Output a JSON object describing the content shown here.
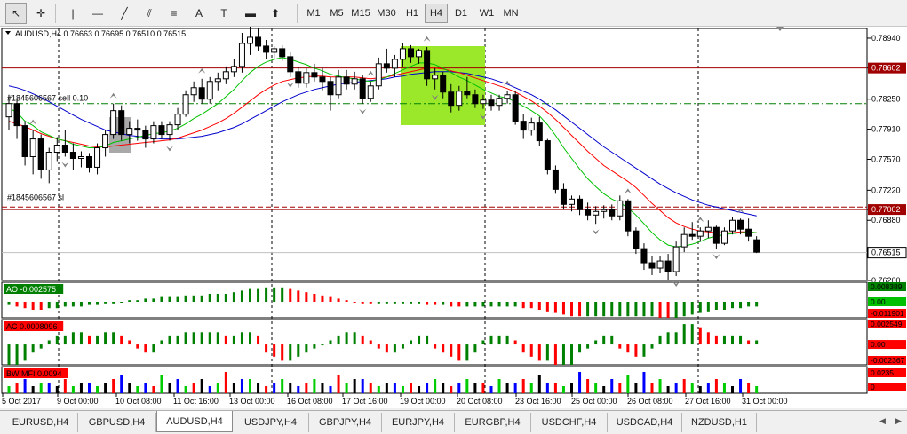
{
  "toolbar": {
    "tools": [
      {
        "name": "cursor-tool",
        "glyph": "↖"
      },
      {
        "name": "crosshair-tool",
        "glyph": "✛"
      },
      {
        "name": "vertical-line-tool",
        "glyph": "|"
      },
      {
        "name": "horizontal-line-tool",
        "glyph": "—"
      },
      {
        "name": "trendline-tool",
        "glyph": "╱"
      },
      {
        "name": "equidistant-channel-tool",
        "glyph": "⫽"
      },
      {
        "name": "fibonacci-tool",
        "glyph": "≡"
      },
      {
        "name": "text-tool",
        "glyph": "A"
      },
      {
        "name": "text-label-tool",
        "glyph": "T"
      },
      {
        "name": "rectangle-tool",
        "glyph": "▬"
      },
      {
        "name": "shapes-menu-tool",
        "glyph": "⬆"
      }
    ],
    "timeframes": [
      "M1",
      "M5",
      "M15",
      "M30",
      "H1",
      "H4",
      "D1",
      "W1",
      "MN"
    ],
    "active_timeframe": "H4"
  },
  "chart": {
    "symbol_info": "AUDUSD,H4  0.76663 0.76695 0.76510 0.76515",
    "trade_labels": [
      "#1845606567 sell 0.10",
      "#1845606567 sl"
    ],
    "price_levels": [
      "0.78940",
      "0.78602",
      "0.78250",
      "0.77910",
      "0.77570",
      "0.77220",
      "0.77002",
      "0.76880",
      "0.76515",
      "0.76200"
    ],
    "highlighted_levels": {
      "line_high": "0.78602",
      "line_sl": "0.77002",
      "current": "0.76515"
    },
    "time_labels": [
      "5 Oct 2017",
      "9 Oct 00:00",
      "10 Oct 08:00",
      "11 Oct 16:00",
      "13 Oct 00:00",
      "16 Oct 08:00",
      "17 Oct 16:00",
      "19 Oct 00:00",
      "20 Oct 08:00",
      "23 Oct 16:00",
      "25 Oct 00:00",
      "26 Oct 08:00",
      "27 Oct 16:00",
      "31 Oct 00:00"
    ],
    "colors": {
      "bull": "#000000",
      "bear": "#000000",
      "ma_fast": "#00c000",
      "ma_mid": "#ff0000",
      "ma_slow": "#0000cc",
      "level_line": "#a00000",
      "trade_line": "#008000",
      "highlight_rect": "#9be82a"
    }
  },
  "indicators": {
    "ao": {
      "label": "AO -0.002575",
      "scale": [
        "0.008389",
        "0.00",
        "-0.011901"
      ]
    },
    "ac": {
      "label": "AC 0.0008096",
      "scale": [
        "0.002549",
        "0.00",
        "-0.002367"
      ]
    },
    "bwmfi": {
      "label": "BW MFI 0.0094",
      "scale": [
        "0.0235",
        "0"
      ]
    }
  },
  "symbol_tabs": [
    "EURUSD,H4",
    "GBPUSD,H4",
    "AUDUSD,H4",
    "USDJPY,H4",
    "GBPJPY,H4",
    "EURJPY,H4",
    "EURGBP,H4",
    "USDCHF,H4",
    "USDCAD,H4",
    "NZDUSD,H1"
  ],
  "active_tab": "AUDUSD,H4",
  "chart_data": {
    "type": "candlestick",
    "title": "AUDUSD,H4",
    "ylim": [
      0.762,
      0.7905
    ],
    "ohlc": [
      [
        0.7805,
        0.783,
        0.779,
        0.782
      ],
      [
        0.782,
        0.7826,
        0.778,
        0.7795
      ],
      [
        0.7795,
        0.78,
        0.775,
        0.776
      ],
      [
        0.776,
        0.779,
        0.774,
        0.778
      ],
      [
        0.778,
        0.7785,
        0.7735,
        0.7745
      ],
      [
        0.7745,
        0.777,
        0.773,
        0.7765
      ],
      [
        0.7765,
        0.7782,
        0.7755,
        0.7773
      ],
      [
        0.7773,
        0.779,
        0.776,
        0.7765
      ],
      [
        0.7765,
        0.7775,
        0.7745,
        0.7758
      ],
      [
        0.7758,
        0.7766,
        0.7748,
        0.776
      ],
      [
        0.776,
        0.7764,
        0.7742,
        0.7748
      ],
      [
        0.7748,
        0.7775,
        0.774,
        0.777
      ],
      [
        0.777,
        0.779,
        0.776,
        0.7785
      ],
      [
        0.7785,
        0.782,
        0.778,
        0.7812
      ],
      [
        0.7812,
        0.7818,
        0.7778,
        0.7785
      ],
      [
        0.7785,
        0.78,
        0.7775,
        0.7792
      ],
      [
        0.7792,
        0.7802,
        0.7778,
        0.779
      ],
      [
        0.779,
        0.7795,
        0.777,
        0.778
      ],
      [
        0.778,
        0.78,
        0.7775,
        0.7795
      ],
      [
        0.7795,
        0.78,
        0.778,
        0.7785
      ],
      [
        0.7785,
        0.78,
        0.7778,
        0.7796
      ],
      [
        0.7796,
        0.7815,
        0.779,
        0.7808
      ],
      [
        0.7808,
        0.7835,
        0.7805,
        0.783
      ],
      [
        0.783,
        0.7845,
        0.7822,
        0.7838
      ],
      [
        0.7838,
        0.7848,
        0.782,
        0.7825
      ],
      [
        0.7825,
        0.785,
        0.782,
        0.7845
      ],
      [
        0.7845,
        0.7855,
        0.7835,
        0.7848
      ],
      [
        0.7848,
        0.7862,
        0.7842,
        0.7856
      ],
      [
        0.7856,
        0.787,
        0.785,
        0.7862
      ],
      [
        0.7862,
        0.79,
        0.7855,
        0.7888
      ],
      [
        0.7888,
        0.7908,
        0.7875,
        0.7895
      ],
      [
        0.7895,
        0.7905,
        0.788,
        0.7885
      ],
      [
        0.7885,
        0.7892,
        0.787,
        0.7878
      ],
      [
        0.7878,
        0.7885,
        0.787,
        0.7882
      ],
      [
        0.7882,
        0.7886,
        0.7868,
        0.7873
      ],
      [
        0.7873,
        0.7878,
        0.785,
        0.7856
      ],
      [
        0.7856,
        0.7862,
        0.7838,
        0.7843
      ],
      [
        0.7843,
        0.786,
        0.7838,
        0.7855
      ],
      [
        0.7855,
        0.7865,
        0.7845,
        0.785
      ],
      [
        0.785,
        0.786,
        0.7835,
        0.7845
      ],
      [
        0.7845,
        0.785,
        0.7812,
        0.783
      ],
      [
        0.783,
        0.7858,
        0.7826,
        0.785
      ],
      [
        0.785,
        0.7858,
        0.7836,
        0.7842
      ],
      [
        0.7842,
        0.7856,
        0.7836,
        0.7848
      ],
      [
        0.7848,
        0.7852,
        0.782,
        0.7826
      ],
      [
        0.7826,
        0.7845,
        0.7822,
        0.784
      ],
      [
        0.784,
        0.7872,
        0.7836,
        0.7865
      ],
      [
        0.7865,
        0.7882,
        0.7855,
        0.786
      ],
      [
        0.786,
        0.7875,
        0.785,
        0.787
      ],
      [
        0.787,
        0.7888,
        0.7862,
        0.7882
      ],
      [
        0.7882,
        0.7886,
        0.7866,
        0.7873
      ],
      [
        0.7873,
        0.7882,
        0.7865,
        0.788
      ],
      [
        0.788,
        0.7884,
        0.784,
        0.7848
      ],
      [
        0.7848,
        0.786,
        0.7836,
        0.7852
      ],
      [
        0.7852,
        0.7856,
        0.7826,
        0.7833
      ],
      [
        0.7833,
        0.7842,
        0.781,
        0.7818
      ],
      [
        0.7818,
        0.784,
        0.7812,
        0.7834
      ],
      [
        0.7834,
        0.785,
        0.7826,
        0.783
      ],
      [
        0.783,
        0.7836,
        0.7815,
        0.782
      ],
      [
        0.782,
        0.783,
        0.7814,
        0.7824
      ],
      [
        0.7824,
        0.783,
        0.7812,
        0.7818
      ],
      [
        0.7818,
        0.783,
        0.7812,
        0.7826
      ],
      [
        0.7826,
        0.7834,
        0.782,
        0.783
      ],
      [
        0.783,
        0.7834,
        0.7796,
        0.78
      ],
      [
        0.78,
        0.7808,
        0.778,
        0.779
      ],
      [
        0.779,
        0.7804,
        0.7784,
        0.7798
      ],
      [
        0.7798,
        0.7805,
        0.7772,
        0.7778
      ],
      [
        0.7778,
        0.778,
        0.774,
        0.7745
      ],
      [
        0.7745,
        0.775,
        0.7718,
        0.7723
      ],
      [
        0.7723,
        0.773,
        0.77,
        0.7706
      ],
      [
        0.7706,
        0.7716,
        0.7698,
        0.7712
      ],
      [
        0.7712,
        0.7716,
        0.7694,
        0.77
      ],
      [
        0.77,
        0.7708,
        0.7688,
        0.7694
      ],
      [
        0.7694,
        0.7704,
        0.7684,
        0.7698
      ],
      [
        0.7698,
        0.7705,
        0.769,
        0.77
      ],
      [
        0.77,
        0.7706,
        0.7688,
        0.7693
      ],
      [
        0.7693,
        0.7716,
        0.7688,
        0.771
      ],
      [
        0.771,
        0.7712,
        0.767,
        0.7676
      ],
      [
        0.7676,
        0.768,
        0.765,
        0.7656
      ],
      [
        0.7656,
        0.7662,
        0.7632,
        0.764
      ],
      [
        0.764,
        0.7648,
        0.7626,
        0.7634
      ],
      [
        0.7634,
        0.7648,
        0.7628,
        0.7642
      ],
      [
        0.7642,
        0.765,
        0.762,
        0.763
      ],
      [
        0.763,
        0.7664,
        0.7625,
        0.7658
      ],
      [
        0.7658,
        0.768,
        0.7652,
        0.7672
      ],
      [
        0.7672,
        0.7686,
        0.7666,
        0.767
      ],
      [
        0.767,
        0.768,
        0.7664,
        0.7676
      ],
      [
        0.7676,
        0.7688,
        0.7668,
        0.768
      ],
      [
        0.768,
        0.7682,
        0.7656,
        0.7662
      ],
      [
        0.7662,
        0.768,
        0.766,
        0.7676
      ],
      [
        0.7676,
        0.7692,
        0.7672,
        0.7688
      ],
      [
        0.7688,
        0.769,
        0.7672,
        0.7678
      ],
      [
        0.7678,
        0.769,
        0.7664,
        0.767
      ],
      [
        0.7666,
        0.767,
        0.7651,
        0.7652
      ]
    ],
    "ma_fast": [
      0.7815,
      0.781,
      0.78,
      0.7795,
      0.7788,
      0.7784,
      0.778,
      0.7778,
      0.7774,
      0.7772,
      0.777,
      0.777,
      0.7772,
      0.7776,
      0.7778,
      0.778,
      0.7782,
      0.7784,
      0.7786,
      0.7787,
      0.7789,
      0.7792,
      0.7797,
      0.7803,
      0.7808,
      0.7814,
      0.782,
      0.7828,
      0.7836,
      0.7846,
      0.7855,
      0.7862,
      0.7867,
      0.787,
      0.7872,
      0.787,
      0.7867,
      0.7864,
      0.786,
      0.7857,
      0.7853,
      0.7851,
      0.7849,
      0.7848,
      0.7846,
      0.7845,
      0.7847,
      0.785,
      0.7854,
      0.7858,
      0.7862,
      0.7866,
      0.7866,
      0.7864,
      0.786,
      0.7855,
      0.785,
      0.7846,
      0.7841,
      0.7836,
      0.7832,
      0.7828,
      0.7826,
      0.7822,
      0.7817,
      0.7812,
      0.7806,
      0.7796,
      0.7784,
      0.777,
      0.7758,
      0.7746,
      0.7735,
      0.7726,
      0.7718,
      0.7712,
      0.7708,
      0.7702,
      0.7694,
      0.7684,
      0.7674,
      0.7666,
      0.766,
      0.7658,
      0.7659,
      0.7661,
      0.7664,
      0.7668,
      0.767,
      0.7672,
      0.7673,
      0.7674,
      0.7675,
      0.7674
    ],
    "ma_mid": [
      0.78,
      0.7797,
      0.7794,
      0.779,
      0.7786,
      0.7783,
      0.778,
      0.7778,
      0.7776,
      0.7774,
      0.7772,
      0.7771,
      0.7771,
      0.7772,
      0.7773,
      0.7774,
      0.7775,
      0.7776,
      0.7777,
      0.7778,
      0.7779,
      0.7781,
      0.7784,
      0.7787,
      0.779,
      0.7794,
      0.7798,
      0.7803,
      0.7809,
      0.7816,
      0.7823,
      0.783,
      0.7836,
      0.7841,
      0.7845,
      0.7847,
      0.7849,
      0.785,
      0.7851,
      0.7851,
      0.785,
      0.785,
      0.785,
      0.785,
      0.7849,
      0.7848,
      0.7849,
      0.785,
      0.7852,
      0.7854,
      0.7856,
      0.7858,
      0.786,
      0.786,
      0.7859,
      0.7857,
      0.7855,
      0.7852,
      0.7849,
      0.7846,
      0.7843,
      0.784,
      0.7837,
      0.7833,
      0.7828,
      0.7823,
      0.7817,
      0.781,
      0.7802,
      0.7793,
      0.7784,
      0.7775,
      0.7766,
      0.7758,
      0.775,
      0.7744,
      0.7738,
      0.7732,
      0.7725,
      0.7716,
      0.7707,
      0.7699,
      0.7691,
      0.7685,
      0.7681,
      0.7678,
      0.7676,
      0.7675,
      0.7674,
      0.7674,
      0.7674,
      0.7675,
      0.7675,
      0.7674
    ],
    "ma_slow": [
      0.784,
      0.7838,
      0.7835,
      0.7831,
      0.7827,
      0.7822,
      0.7817,
      0.7812,
      0.7807,
      0.7802,
      0.7798,
      0.7794,
      0.779,
      0.7788,
      0.7786,
      0.7784,
      0.7783,
      0.7782,
      0.7781,
      0.778,
      0.778,
      0.778,
      0.7781,
      0.7782,
      0.7783,
      0.7785,
      0.7787,
      0.779,
      0.7793,
      0.7797,
      0.7802,
      0.7807,
      0.7812,
      0.7817,
      0.7822,
      0.7826,
      0.783,
      0.7833,
      0.7836,
      0.7838,
      0.784,
      0.7842,
      0.7843,
      0.7844,
      0.7845,
      0.7846,
      0.7847,
      0.7848,
      0.785,
      0.7851,
      0.7853,
      0.7854,
      0.7855,
      0.7856,
      0.7856,
      0.7856,
      0.7855,
      0.7854,
      0.7852,
      0.785,
      0.7848,
      0.7845,
      0.7842,
      0.7838,
      0.7834,
      0.783,
      0.7825,
      0.7819,
      0.7813,
      0.7806,
      0.7799,
      0.7792,
      0.7785,
      0.7778,
      0.7771,
      0.7765,
      0.7759,
      0.7753,
      0.7747,
      0.7741,
      0.7735,
      0.7729,
      0.7724,
      0.7719,
      0.7715,
      0.7711,
      0.7708,
      0.7705,
      0.7703,
      0.7701,
      0.7699,
      0.7697,
      0.7695,
      0.7693
    ],
    "ao": [
      -2,
      -3,
      -4,
      -5,
      -5,
      -4,
      -4,
      -3,
      -3,
      -3,
      -2,
      -2,
      -1,
      -1,
      0,
      1,
      1,
      2,
      2,
      3,
      3,
      3,
      4,
      4,
      4,
      5,
      5,
      5,
      6,
      7,
      8,
      8,
      9,
      9,
      9,
      8,
      7,
      6,
      5,
      4,
      3,
      2,
      1,
      0,
      -1,
      -1,
      -1,
      -1,
      -1,
      -1,
      -1,
      -1,
      -2,
      -2,
      -2,
      -3,
      -3,
      -3,
      -3,
      -3,
      -3,
      -3,
      -3,
      -3,
      -4,
      -4,
      -5,
      -6,
      -7,
      -8,
      -9,
      -9,
      -9,
      -9,
      -9,
      -9,
      -9,
      -9,
      -9,
      -9,
      -9,
      -10,
      -10,
      -10,
      -9,
      -8,
      -7,
      -6,
      -5,
      -5,
      -4,
      -4,
      -3,
      -3
    ],
    "ac": [
      -5,
      -5,
      -4,
      -2,
      -1,
      1,
      2,
      2,
      3,
      3,
      2,
      2,
      3,
      3,
      2,
      1,
      -1,
      -2,
      -2,
      1,
      2,
      2,
      3,
      3,
      3,
      3,
      3,
      2,
      2,
      3,
      3,
      2,
      -2,
      -3,
      -4,
      -4,
      -3,
      -2,
      -1,
      0,
      1,
      2,
      3,
      3,
      2,
      1,
      -1,
      -2,
      -2,
      -1,
      1,
      2,
      2,
      -1,
      -2,
      -3,
      -4,
      -4,
      -2,
      1,
      2,
      2,
      2,
      1,
      -2,
      -3,
      -4,
      -4,
      -5,
      -5,
      -5,
      -2,
      -1,
      1,
      2,
      2,
      -1,
      -2,
      -3,
      -3,
      -1,
      2,
      3,
      3,
      5,
      5,
      4,
      3,
      2,
      2,
      2,
      2,
      1,
      1
    ],
    "mfi": [
      2,
      3,
      4,
      2,
      3,
      3,
      2,
      4,
      2,
      3,
      3,
      2,
      3,
      4,
      5,
      3,
      2,
      3,
      2,
      5,
      3,
      4,
      2,
      3,
      4,
      2,
      3,
      6,
      3,
      4,
      4,
      3,
      2,
      3,
      4,
      3,
      2,
      3,
      4,
      3,
      2,
      5,
      3,
      4,
      4,
      3,
      2,
      3,
      3,
      2,
      3,
      2,
      3,
      4,
      3,
      2,
      3,
      4,
      3,
      3,
      2,
      4,
      3,
      3,
      4,
      3,
      5,
      3,
      3,
      2,
      3,
      6,
      4,
      3,
      2,
      4,
      3,
      5,
      3,
      6,
      3,
      4,
      2,
      3,
      4,
      3,
      2,
      3,
      4,
      3,
      2,
      4,
      3,
      2
    ],
    "mfi_colors": [
      "g",
      "r",
      "b",
      "k",
      "g",
      "b",
      "k",
      "r",
      "g",
      "k",
      "b",
      "g",
      "k",
      "r",
      "b",
      "k",
      "g",
      "b",
      "r",
      "g",
      "k",
      "b",
      "g",
      "r",
      "k",
      "b",
      "g",
      "r",
      "k",
      "b",
      "g",
      "k",
      "r",
      "b",
      "g",
      "k",
      "b",
      "r",
      "g",
      "k",
      "b",
      "r",
      "g",
      "k",
      "b",
      "r",
      "g",
      "k",
      "b",
      "g",
      "r",
      "k",
      "b",
      "g",
      "k",
      "r",
      "b",
      "g",
      "k",
      "r",
      "b",
      "g",
      "k",
      "b",
      "r",
      "g",
      "k",
      "b",
      "r",
      "g",
      "k",
      "b",
      "r",
      "g",
      "k",
      "b",
      "r",
      "g",
      "k",
      "b",
      "r",
      "g",
      "k",
      "b",
      "r",
      "g",
      "k",
      "b",
      "r",
      "g",
      "k",
      "b",
      "r",
      "g"
    ]
  }
}
